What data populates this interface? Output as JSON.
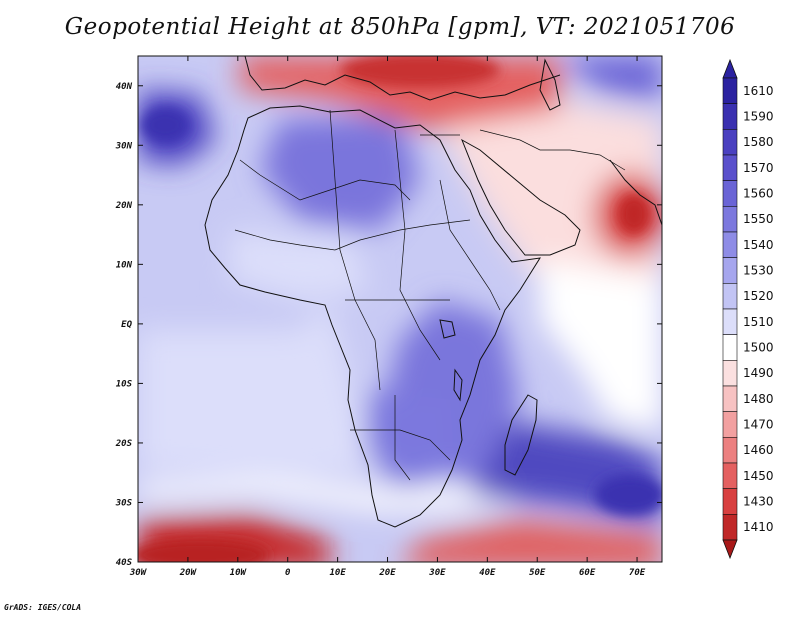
{
  "title": "Geopotential Height at 850hPa [gpm], VT: 2021051706",
  "credit": "GrADS: IGES/COLA",
  "map": {
    "lon_range": [
      -30,
      75
    ],
    "lat_range": [
      -40,
      45
    ],
    "lon_ticks": [
      {
        "lon": -30,
        "label": "30W"
      },
      {
        "lon": -20,
        "label": "20W"
      },
      {
        "lon": -10,
        "label": "10W"
      },
      {
        "lon": 0,
        "label": "0"
      },
      {
        "lon": 10,
        "label": "10E"
      },
      {
        "lon": 20,
        "label": "20E"
      },
      {
        "lon": 30,
        "label": "30E"
      },
      {
        "lon": 40,
        "label": "40E"
      },
      {
        "lon": 50,
        "label": "50E"
      },
      {
        "lon": 60,
        "label": "60E"
      },
      {
        "lon": 70,
        "label": "70E"
      }
    ],
    "lat_ticks": [
      {
        "lat": 40,
        "label": "40N"
      },
      {
        "lat": 30,
        "label": "30N"
      },
      {
        "lat": 20,
        "label": "20N"
      },
      {
        "lat": 10,
        "label": "10N"
      },
      {
        "lat": 0,
        "label": "EQ"
      },
      {
        "lat": -10,
        "label": "10S"
      },
      {
        "lat": -20,
        "label": "20S"
      },
      {
        "lat": -30,
        "label": "30S"
      },
      {
        "lat": -40,
        "label": "40S"
      }
    ]
  },
  "colorbar": {
    "levels": [
      {
        "label": "1610",
        "color": "#2b22a0"
      },
      {
        "label": "1590",
        "color": "#3a30b0"
      },
      {
        "label": "1580",
        "color": "#4a40c0"
      },
      {
        "label": "1570",
        "color": "#5a50cc"
      },
      {
        "label": "1560",
        "color": "#6a64d6"
      },
      {
        "label": "1550",
        "color": "#7c78de"
      },
      {
        "label": "1540",
        "color": "#8e8ce6"
      },
      {
        "label": "1530",
        "color": "#a6a6ee"
      },
      {
        "label": "1520",
        "color": "#c2c4f4"
      },
      {
        "label": "1510",
        "color": "#dcdefa"
      },
      {
        "label": "1500",
        "color": "#ffffff"
      },
      {
        "label": "1490",
        "color": "#fbe0e0"
      },
      {
        "label": "1480",
        "color": "#f7c2c2"
      },
      {
        "label": "1470",
        "color": "#f2a0a0"
      },
      {
        "label": "1460",
        "color": "#ec8080"
      },
      {
        "label": "1450",
        "color": "#e46060"
      },
      {
        "label": "1430",
        "color": "#d84040"
      },
      {
        "label": "1410",
        "color": "#c02828"
      }
    ],
    "bottom_color": "#a81818"
  },
  "colors": {
    "very_low": "#b82020",
    "low": "#e05858",
    "mid_low": "#f4b0b0",
    "neutral": "#ffffff",
    "mid_high": "#c4c6f4",
    "high": "#8a88e4",
    "very_high": "#4a40c0"
  }
}
